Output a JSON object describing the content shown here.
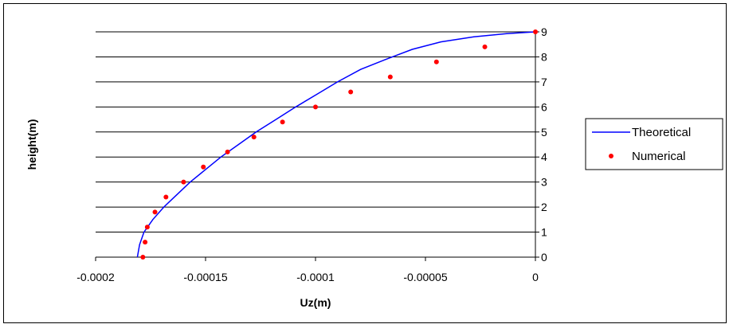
{
  "chart_data": {
    "type": "line",
    "title": "",
    "xlabel": "Uz(m)",
    "ylabel": "height(m)",
    "xlim": [
      -0.0002,
      0
    ],
    "ylim": [
      0,
      9
    ],
    "x_ticks": [
      "-0.0002",
      "-0.00015",
      "-0.0001",
      "-0.00005",
      "0"
    ],
    "y_ticks": [
      "0",
      "1",
      "2",
      "3",
      "4",
      "5",
      "6",
      "7",
      "8",
      "9"
    ],
    "grid": "horizontal",
    "legend_position": "right",
    "series": [
      {
        "name": "Theoretical",
        "style": "line",
        "color": "#0000ff",
        "points": [
          [
            -0.000181,
            0
          ],
          [
            -0.00018,
            0.5
          ],
          [
            -0.000178,
            1.0
          ],
          [
            -0.000174,
            1.5
          ],
          [
            -0.000169,
            2.0
          ],
          [
            -0.000163,
            2.5
          ],
          [
            -0.000157,
            3.0
          ],
          [
            -0.00015,
            3.5
          ],
          [
            -0.000143,
            4.0
          ],
          [
            -0.000135,
            4.5
          ],
          [
            -0.000127,
            5.0
          ],
          [
            -0.000118,
            5.5
          ],
          [
            -0.000109,
            6.0
          ],
          [
            -9.95e-05,
            6.5
          ],
          [
            -9e-05,
            7.0
          ],
          [
            -7.95e-05,
            7.5
          ],
          [
            -6.8e-05,
            7.9
          ],
          [
            -5.6e-05,
            8.3
          ],
          [
            -4.3e-05,
            8.6
          ],
          [
            -2.8e-05,
            8.8
          ],
          [
            -1.3e-05,
            8.93
          ],
          [
            0,
            9.0
          ]
        ]
      },
      {
        "name": "Numerical",
        "style": "markers",
        "color": "#ff0000",
        "points": [
          [
            -0.0001785,
            0
          ],
          [
            -0.0001775,
            0.6
          ],
          [
            -0.0001765,
            1.2
          ],
          [
            -0.000173,
            1.8
          ],
          [
            -0.000168,
            2.4
          ],
          [
            -0.00016,
            3.0
          ],
          [
            -0.000151,
            3.6
          ],
          [
            -0.00014,
            4.2
          ],
          [
            -0.000128,
            4.8
          ],
          [
            -0.000115,
            5.4
          ],
          [
            -0.0001,
            6.0
          ],
          [
            -8.4e-05,
            6.6
          ],
          [
            -6.6e-05,
            7.2
          ],
          [
            -4.5e-05,
            7.8
          ],
          [
            -2.3e-05,
            8.4
          ],
          [
            0,
            9.0
          ]
        ]
      }
    ]
  }
}
